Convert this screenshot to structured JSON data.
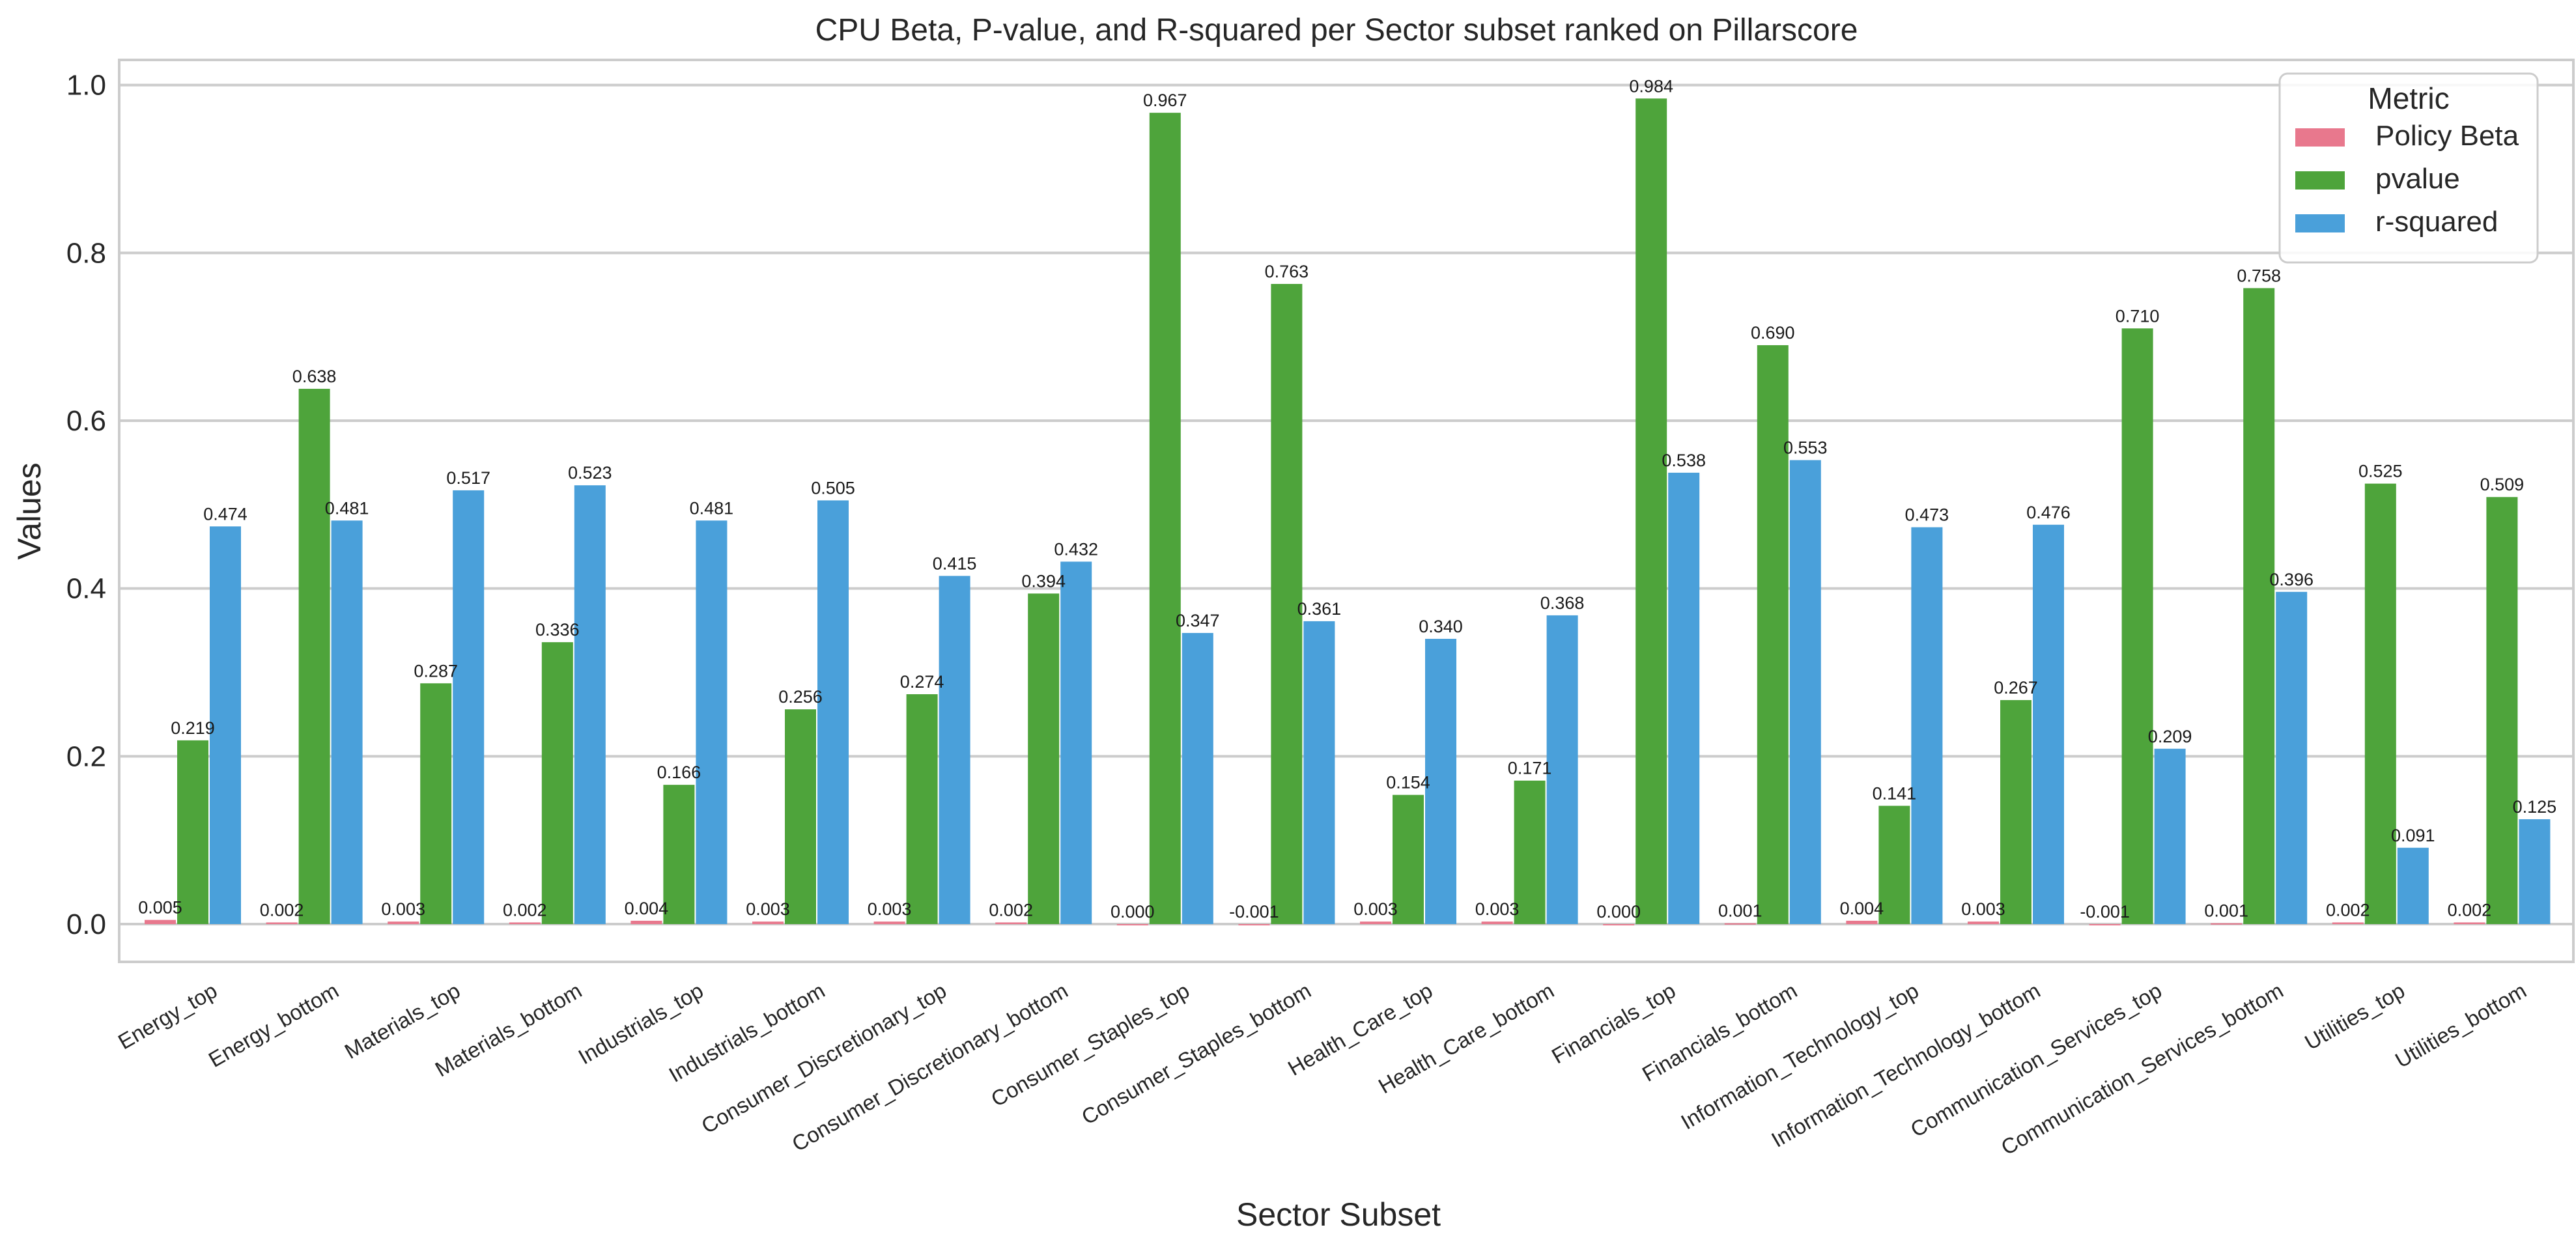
{
  "chart_data": {
    "type": "bar",
    "title": "CPU Beta, P-value, and R-squared per Sector subset ranked on Pillarscore",
    "xlabel": "Sector Subset",
    "ylabel": "Values",
    "ylim": [
      -0.045,
      1.03
    ],
    "yticks": [
      "0.0",
      "0.2",
      "0.4",
      "0.6",
      "0.8",
      "1.0"
    ],
    "grid": true,
    "legend": {
      "title": "Metric",
      "position": "top-right"
    },
    "categories": [
      "Energy_top",
      "Energy_bottom",
      "Materials_top",
      "Materials_bottom",
      "Industrials_top",
      "Industrials_bottom",
      "Consumer_Discretionary_top",
      "Consumer_Discretionary_bottom",
      "Consumer_Staples_top",
      "Consumer_Staples_bottom",
      "Health_Care_top",
      "Health_Care_bottom",
      "Financials_top",
      "Financials_bottom",
      "Information_Technology_top",
      "Information_Technology_bottom",
      "Communication_Services_top",
      "Communication_Services_bottom",
      "Utilities_top",
      "Utilities_bottom"
    ],
    "series": [
      {
        "name": "Policy Beta",
        "color": "#e8788d",
        "values": [
          0.005,
          0.002,
          0.003,
          0.002,
          0.004,
          0.003,
          0.003,
          0.002,
          0.0,
          -0.001,
          0.003,
          0.003,
          0.0,
          0.001,
          0.004,
          0.003,
          -0.001,
          0.001,
          0.002,
          0.002
        ],
        "labels": [
          "0.005",
          "0.002",
          "0.003",
          "0.002",
          "0.004",
          "0.003",
          "0.003",
          "0.002",
          "0.000",
          "-0.001",
          "0.003",
          "0.003",
          "0.000",
          "0.001",
          "0.004",
          "0.003",
          "-0.001",
          "0.001",
          "0.002",
          "0.002"
        ]
      },
      {
        "name": "pvalue",
        "color": "#4ea43b",
        "values": [
          0.219,
          0.638,
          0.287,
          0.336,
          0.166,
          0.256,
          0.274,
          0.394,
          0.967,
          0.763,
          0.154,
          0.171,
          0.984,
          0.69,
          0.141,
          0.267,
          0.71,
          0.758,
          0.525,
          0.509
        ],
        "labels": [
          "0.219",
          "0.638",
          "0.287",
          "0.336",
          "0.166",
          "0.256",
          "0.274",
          "0.394",
          "0.967",
          "0.763",
          "0.154",
          "0.171",
          "0.984",
          "0.690",
          "0.141",
          "0.267",
          "0.710",
          "0.758",
          "0.525",
          "0.509"
        ]
      },
      {
        "name": "r-squared",
        "color": "#4aa0da",
        "values": [
          0.474,
          0.481,
          0.517,
          0.523,
          0.481,
          0.505,
          0.415,
          0.432,
          0.347,
          0.361,
          0.34,
          0.368,
          0.538,
          0.553,
          0.473,
          0.476,
          0.209,
          0.396,
          0.091,
          0.125
        ],
        "labels": [
          "0.474",
          "0.481",
          "0.517",
          "0.523",
          "0.481",
          "0.505",
          "0.415",
          "0.432",
          "0.347",
          "0.361",
          "0.340",
          "0.368",
          "0.538",
          "0.553",
          "0.473",
          "0.476",
          "0.209",
          "0.396",
          "0.091",
          "0.125"
        ]
      }
    ]
  }
}
